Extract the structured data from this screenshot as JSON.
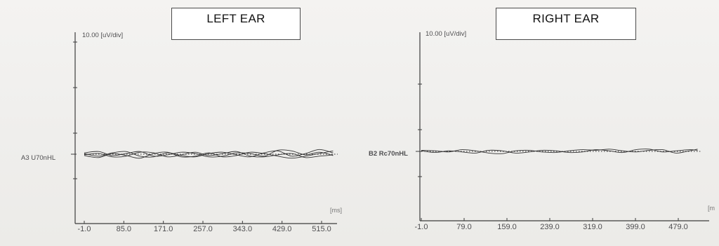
{
  "panels": {
    "left": {
      "title": "LEFT EAR",
      "scale": "10.00 [uV/div]",
      "channel": "A3 U70nHL",
      "unit": "[ms]",
      "ticks": [
        "-1.0",
        "85.0",
        "171.0",
        "257.0",
        "343.0",
        "429.0",
        "515.0"
      ]
    },
    "right": {
      "title": "RIGHT EAR",
      "scale": "10.00 [uV/div]",
      "channel": "B2 Rc70nHL",
      "unit": "[m",
      "ticks": [
        "-1.0",
        "79.0",
        "159.0",
        "239.0",
        "319.0",
        "399.0",
        "479.0"
      ]
    }
  },
  "chart_data": [
    {
      "type": "line",
      "title": "LEFT EAR",
      "ylabel": "10.00 [uV/div]",
      "xlabel": "[ms]",
      "xlim": [
        -1.0,
        550.0
      ],
      "ylim": [
        -40,
        40
      ],
      "x_ticks": [
        -1.0,
        85.0,
        171.0,
        257.0,
        343.0,
        429.0,
        515.0
      ],
      "grid": false,
      "series": [
        {
          "name": "A3 U70nHL",
          "style": "dotted",
          "x": [
            -1,
            50,
            100,
            150,
            200,
            250,
            300,
            350,
            400,
            450,
            500,
            550
          ],
          "y": [
            0,
            0,
            0,
            0,
            0,
            0,
            0,
            0,
            0,
            0,
            0,
            0
          ]
        },
        {
          "x": [
            -1,
            30,
            60,
            90,
            120,
            150,
            180,
            210,
            240,
            270,
            300,
            330,
            360,
            390,
            420,
            450,
            480,
            510,
            540
          ],
          "y": [
            0.5,
            -1.5,
            1,
            2,
            -1.5,
            -2,
            1,
            -1,
            -2,
            0.5,
            1.5,
            -0.5,
            -2,
            1,
            2.5,
            -1.5,
            0.5,
            3.5,
            1
          ]
        },
        {
          "x": [
            -1,
            30,
            60,
            90,
            120,
            150,
            180,
            210,
            240,
            270,
            300,
            330,
            360,
            390,
            420,
            450,
            480,
            510,
            540
          ],
          "y": [
            1,
            2,
            -1,
            0.5,
            2,
            -1.5,
            -0.5,
            1.5,
            0.5,
            -2,
            -1.5,
            1,
            0.5,
            -1.5,
            3,
            2.5,
            -0.5,
            1.5,
            -1
          ]
        },
        {
          "x": [
            -1,
            30,
            60,
            90,
            120,
            150,
            180,
            210,
            240,
            270,
            300,
            330,
            360,
            390,
            420,
            450,
            480,
            510,
            540
          ],
          "y": [
            -0.5,
            0.5,
            -2,
            -1.5,
            1.5,
            1,
            -2,
            -0.5,
            1.5,
            -1,
            0.5,
            2,
            -1.5,
            -2,
            -0.5,
            0.5,
            -2.5,
            -1.5,
            -0.5
          ]
        },
        {
          "x": [
            -1,
            30,
            60,
            90,
            120,
            150,
            180,
            210,
            240,
            270,
            300,
            330,
            360,
            390,
            420,
            450,
            480,
            510,
            540
          ],
          "y": [
            -1,
            -2.5,
            0.5,
            -1,
            -3,
            0.5,
            1.5,
            -2,
            -1.5,
            1,
            -2,
            -1,
            1.5,
            0.5,
            -1.5,
            -3,
            -1.5,
            0.5,
            2.5
          ]
        }
      ]
    },
    {
      "type": "line",
      "title": "RIGHT EAR",
      "ylabel": "10.00 [uV/div]",
      "xlabel": "[m",
      "xlim": [
        -1.0,
        530.0
      ],
      "ylim": [
        -40,
        40
      ],
      "x_ticks": [
        -1.0,
        79.0,
        159.0,
        239.0,
        319.0,
        399.0,
        479.0
      ],
      "grid": false,
      "series": [
        {
          "name": "B2 Rc70nHL",
          "style": "dotted",
          "x": [
            -1,
            50,
            100,
            150,
            200,
            250,
            300,
            350,
            400,
            450,
            500,
            520
          ],
          "y": [
            0,
            0,
            0,
            0,
            0,
            0,
            0,
            0,
            0,
            0,
            0,
            0
          ]
        },
        {
          "x": [
            -1,
            25,
            50,
            75,
            100,
            125,
            150,
            175,
            200,
            225,
            250,
            275,
            300,
            325,
            350,
            375,
            400,
            425,
            450,
            475,
            500,
            515
          ],
          "y": [
            1,
            0.5,
            -0.5,
            1.5,
            0.5,
            -1.5,
            -2,
            0.5,
            1,
            -0.5,
            -1,
            0.5,
            1.5,
            1,
            2,
            0.5,
            -0.5,
            1,
            1.5,
            -1.5,
            0.5,
            2
          ]
        },
        {
          "x": [
            -1,
            25,
            50,
            75,
            100,
            125,
            150,
            175,
            200,
            225,
            250,
            275,
            300,
            325,
            350,
            375,
            400,
            425,
            450,
            475,
            500,
            515
          ],
          "y": [
            0.5,
            -1,
            0.5,
            -0.5,
            -1.5,
            1,
            0.5,
            -1.5,
            -0.5,
            1,
            0.5,
            -1,
            -0.5,
            1.5,
            0.5,
            -1,
            1.5,
            2,
            -0.5,
            0.5,
            1.5,
            1
          ]
        }
      ]
    }
  ]
}
